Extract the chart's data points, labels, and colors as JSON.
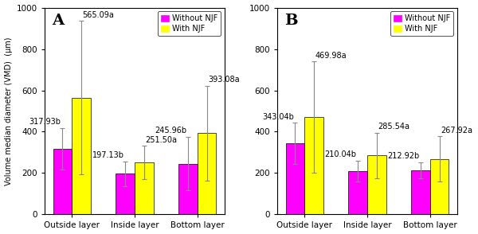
{
  "panel_A": {
    "label": "A",
    "categories": [
      "Outside layer",
      "Inside layer",
      "Bottom layer"
    ],
    "without_njf": [
      317.93,
      197.13,
      245.96
    ],
    "with_njf": [
      565.09,
      251.5,
      393.08
    ],
    "without_njf_err": [
      100,
      60,
      130
    ],
    "with_njf_err": [
      370,
      80,
      230
    ],
    "without_njf_labels": [
      "317.93b",
      "197.13b",
      "245.96b"
    ],
    "with_njf_labels": [
      "565.09a",
      "251.50a",
      "393.08a"
    ],
    "ylim": [
      0,
      1000
    ],
    "yticks": [
      0,
      200,
      400,
      600,
      800,
      1000
    ]
  },
  "panel_B": {
    "label": "B",
    "categories": [
      "Outside layer",
      "Inside layer",
      "Bottom layer"
    ],
    "without_njf": [
      343.04,
      210.04,
      212.92
    ],
    "with_njf": [
      469.98,
      285.54,
      267.92
    ],
    "without_njf_err": [
      100,
      50,
      40
    ],
    "with_njf_err": [
      270,
      110,
      110
    ],
    "without_njf_labels": [
      "343.04b",
      "210.04b",
      "212.92b"
    ],
    "with_njf_labels": [
      "469.98a",
      "285.54a",
      "267.92a"
    ],
    "ylim": [
      0,
      1000
    ],
    "yticks": [
      0,
      200,
      400,
      600,
      800,
      1000
    ]
  },
  "color_without": "#FF00FF",
  "color_with": "#FFFF00",
  "bar_width": 0.3,
  "ylabel": "Volume median diameter (VMD)  (μm)",
  "legend_without": "Without NJF",
  "legend_with": "With NJF",
  "label_fontsize": 7,
  "tick_fontsize": 7.5,
  "panel_fontsize": 14,
  "annot_fontsize": 7
}
